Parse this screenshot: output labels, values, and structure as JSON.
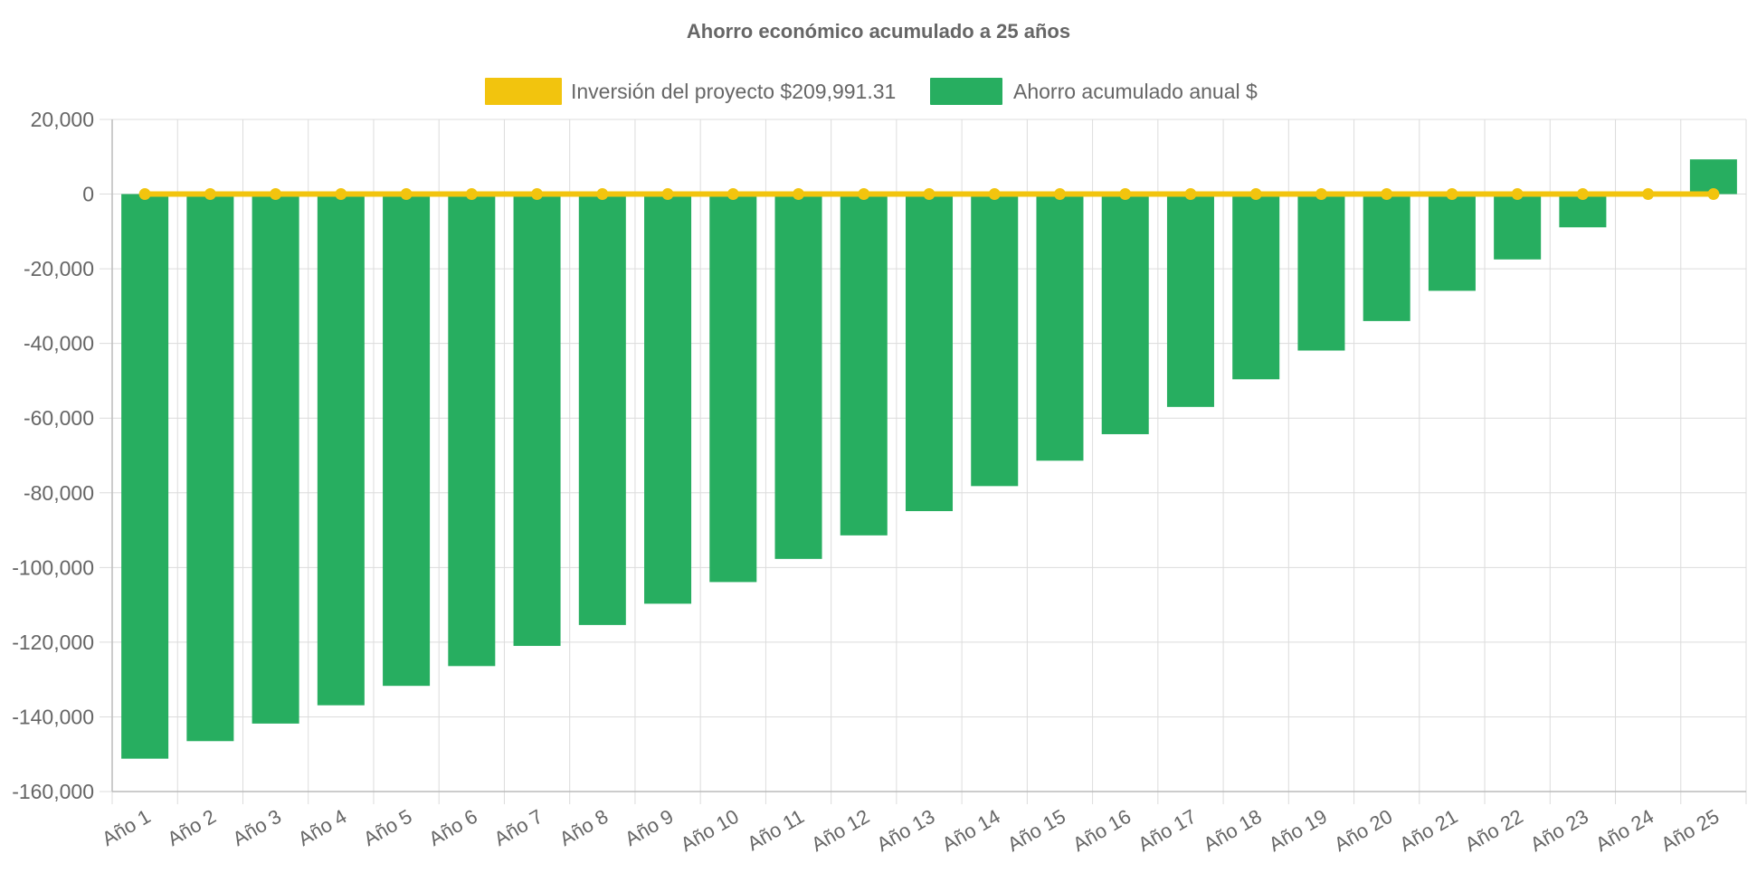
{
  "chart_data": {
    "type": "bar",
    "title": "Ahorro económico acumulado a 25 años",
    "categories": [
      "Año 1",
      "Año 2",
      "Año 3",
      "Año 4",
      "Año 5",
      "Año 6",
      "Año 7",
      "Año 8",
      "Año 9",
      "Año 10",
      "Año 11",
      "Año 12",
      "Año 13",
      "Año 14",
      "Año 15",
      "Año 16",
      "Año 17",
      "Año 18",
      "Año 19",
      "Año 20",
      "Año 21",
      "Año 22",
      "Año 23",
      "Año 24",
      "Año 25"
    ],
    "series": [
      {
        "name": "Inversión del proyecto $209,991.31",
        "kind": "line",
        "color": "#f2c40e",
        "values": [
          0,
          0,
          0,
          0,
          0,
          0,
          0,
          0,
          0,
          0,
          0,
          0,
          0,
          0,
          0,
          0,
          0,
          0,
          0,
          0,
          0,
          0,
          0,
          0,
          0
        ]
      },
      {
        "name": "Ahorro acumulado anual $",
        "kind": "bar",
        "color": "#27ae60",
        "values": [
          -151200,
          -146500,
          -141800,
          -136900,
          -131700,
          -126400,
          -121000,
          -115400,
          -109700,
          -103900,
          -97700,
          -91400,
          -84900,
          -78200,
          -71400,
          -64300,
          -57000,
          -49600,
          -41900,
          -34000,
          -25900,
          -17500,
          -8900,
          0,
          9300
        ]
      }
    ],
    "ylim": [
      -160000,
      20000
    ],
    "ytick_step": 20000,
    "ytick_labels": [
      "20,000",
      "0",
      "-20,000",
      "-40,000",
      "-60,000",
      "-80,000",
      "-100,000",
      "-120,000",
      "-140,000",
      "-160,000"
    ],
    "xlabel": "",
    "ylabel": "",
    "grid": true,
    "legend_position": "top-center"
  }
}
